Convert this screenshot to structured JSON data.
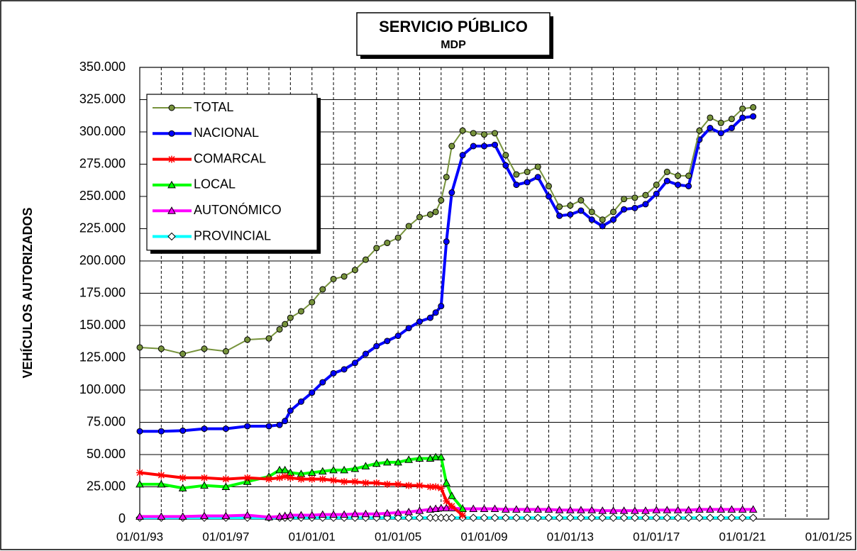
{
  "chart_data": {
    "type": "line",
    "title": "SERVICIO PÚBLICO",
    "subtitle": "MDP",
    "y_label": "VEHÍCULOS AUTORIZADOS",
    "xlim": [
      "01/01/93",
      "01/01/25"
    ],
    "xticks": [
      "01/01/93",
      "01/01/97",
      "01/01/01",
      "01/01/05",
      "01/01/09",
      "01/01/13",
      "01/01/17",
      "01/01/21",
      "01/01/25"
    ],
    "xminorticks": [
      "01/01/94",
      "01/01/95",
      "01/01/96",
      "01/01/98",
      "01/01/99",
      "01/01/00",
      "01/01/02",
      "01/01/03",
      "01/01/04",
      "01/01/06",
      "01/01/07",
      "01/01/08",
      "01/01/10",
      "01/01/11",
      "01/01/12",
      "01/01/14",
      "01/01/15",
      "01/01/16",
      "01/01/18",
      "01/01/19",
      "01/01/20",
      "01/01/22",
      "01/01/23",
      "01/01/24"
    ],
    "ylim": [
      0,
      350000
    ],
    "yticks": [
      0,
      {
        "value": 25000,
        "label": "25.000"
      },
      {
        "value": 50000,
        "label": "50.000"
      },
      {
        "value": 75000,
        "label": "75.000"
      },
      {
        "value": 100000,
        "label": "100.000"
      },
      {
        "value": 125000,
        "label": "125.000"
      },
      {
        "value": 150000,
        "label": "150.000"
      },
      {
        "value": 175000,
        "label": "175.000"
      },
      {
        "value": 200000,
        "label": "200.000"
      },
      {
        "value": 225000,
        "label": "225.000"
      },
      {
        "value": 250000,
        "label": "250.000"
      },
      {
        "value": 275000,
        "label": "275.000"
      },
      {
        "value": 300000,
        "label": "300.000"
      },
      {
        "value": 325000,
        "label": "325.000"
      },
      {
        "value": 350000,
        "label": "350.000"
      }
    ],
    "grid": true,
    "legend": "upper left",
    "x": [
      "01/01/93",
      "01/01/94",
      "01/01/95",
      "01/01/96",
      "01/01/97",
      "01/01/98",
      "01/01/99",
      "01/07/99",
      "01/10/99",
      "01/01/00",
      "01/07/00",
      "01/01/01",
      "01/07/01",
      "01/01/02",
      "01/07/02",
      "01/01/03",
      "01/07/03",
      "01/01/04",
      "01/07/04",
      "01/01/05",
      "01/07/05",
      "01/01/06",
      "01/07/06",
      "01/10/06",
      "01/01/07",
      "01/04/07",
      "01/07/07",
      "01/01/08",
      "01/07/08",
      "01/01/09",
      "01/07/09",
      "01/01/10",
      "01/07/10",
      "01/01/11",
      "01/07/11",
      "01/01/12",
      "01/07/12",
      "01/01/13",
      "01/07/13",
      "01/01/14",
      "01/07/14",
      "01/01/15",
      "01/07/15",
      "01/01/16",
      "01/07/16",
      "01/01/17",
      "01/07/17",
      "01/01/18",
      "01/07/18",
      "01/01/19",
      "01/07/19",
      "01/01/20",
      "01/07/20",
      "01/01/21",
      "01/07/21"
    ],
    "series": [
      {
        "name": "TOTAL",
        "color": "#77933c",
        "marker": "circle",
        "width": 2,
        "values": [
          133000,
          132000,
          128000,
          132000,
          130000,
          139000,
          140000,
          147000,
          151000,
          156000,
          161000,
          168000,
          178000,
          186000,
          188000,
          193000,
          201000,
          210000,
          214000,
          218000,
          227000,
          234000,
          236000,
          238000,
          247000,
          265000,
          289000,
          301000,
          299000,
          298000,
          299000,
          282000,
          267000,
          269000,
          273000,
          258000,
          242000,
          243000,
          247000,
          238000,
          232000,
          238000,
          248000,
          249000,
          251000,
          259000,
          269000,
          266000,
          266000,
          301000,
          311000,
          307000,
          310000,
          318000,
          319000
        ]
      },
      {
        "name": "NACIONAL",
        "color": "#0000ff",
        "marker": "circle",
        "width": 4,
        "values": [
          68000,
          68000,
          68500,
          70000,
          70000,
          72000,
          72000,
          73000,
          76000,
          84000,
          91000,
          98000,
          106000,
          113000,
          116000,
          121000,
          128000,
          134000,
          138000,
          142000,
          148000,
          153000,
          156000,
          160000,
          165000,
          215000,
          253000,
          282000,
          289000,
          289000,
          290000,
          274000,
          259000,
          261000,
          265000,
          250000,
          235000,
          236000,
          239000,
          232000,
          227000,
          232000,
          240000,
          241000,
          244000,
          252000,
          262000,
          259000,
          258000,
          294000,
          303000,
          299000,
          303000,
          311000,
          312000
        ]
      },
      {
        "name": "COMARCAL",
        "color": "#ff0000",
        "marker": "star",
        "width": 4,
        "values": [
          36000,
          34000,
          32000,
          32000,
          31000,
          32000,
          31000,
          32000,
          33000,
          32000,
          31000,
          31000,
          31000,
          30000,
          29000,
          29000,
          28000,
          28000,
          27000,
          27000,
          26000,
          26000,
          25000,
          25000,
          24000,
          14000,
          10000,
          3000,
          null,
          null,
          null,
          null,
          null,
          null,
          null,
          null,
          null,
          null,
          null,
          null,
          null,
          null,
          null,
          null,
          null,
          null,
          null,
          null,
          null,
          null,
          null,
          null,
          null,
          null,
          null
        ]
      },
      {
        "name": "LOCAL",
        "color": "#00ff00",
        "marker": "triangle",
        "width": 4,
        "values": [
          27000,
          27000,
          24000,
          26000,
          25000,
          29000,
          33000,
          38000,
          38000,
          36000,
          35000,
          36000,
          37000,
          38000,
          38000,
          39000,
          41000,
          43000,
          44000,
          44000,
          46000,
          47000,
          47000,
          48000,
          48000,
          28000,
          18000,
          8000,
          null,
          null,
          null,
          null,
          null,
          null,
          null,
          null,
          null,
          null,
          null,
          null,
          null,
          null,
          null,
          null,
          null,
          null,
          null,
          null,
          null,
          null,
          null,
          null,
          null,
          null,
          null
        ]
      },
      {
        "name": "AUTONÓMICO",
        "color": "#ff00ff",
        "marker": "triangle",
        "width": 4,
        "values": [
          2000,
          2000,
          2000,
          2500,
          2500,
          3000,
          1500,
          2000,
          2500,
          3000,
          3000,
          3000,
          3500,
          3500,
          3500,
          4000,
          4000,
          4000,
          4500,
          5000,
          5500,
          6500,
          7500,
          8000,
          8500,
          8500,
          8500,
          8000,
          8000,
          8000,
          8000,
          7500,
          7500,
          7500,
          7500,
          7500,
          7000,
          7000,
          7000,
          7000,
          6500,
          6500,
          6500,
          6500,
          6500,
          7000,
          7000,
          7000,
          7000,
          7500,
          7500,
          7500,
          7500,
          7500,
          7500
        ]
      },
      {
        "name": "PROVINCIAL",
        "color": "#00ffff",
        "marker": "diamond",
        "width": 4,
        "values": [
          1000,
          1000,
          1000,
          1000,
          1000,
          1000,
          1000,
          1000,
          1000,
          1000,
          1000,
          1000,
          1000,
          1000,
          1000,
          1000,
          1000,
          1000,
          1000,
          1000,
          1000,
          1000,
          1000,
          1000,
          1000,
          1000,
          1000,
          1000,
          1000,
          1000,
          1000,
          1000,
          1000,
          1000,
          1000,
          1000,
          1000,
          1000,
          1000,
          1000,
          1000,
          1000,
          1000,
          1000,
          1000,
          1000,
          1000,
          1000,
          1000,
          1000,
          1000,
          1000,
          1000,
          1000,
          1000
        ]
      }
    ]
  }
}
